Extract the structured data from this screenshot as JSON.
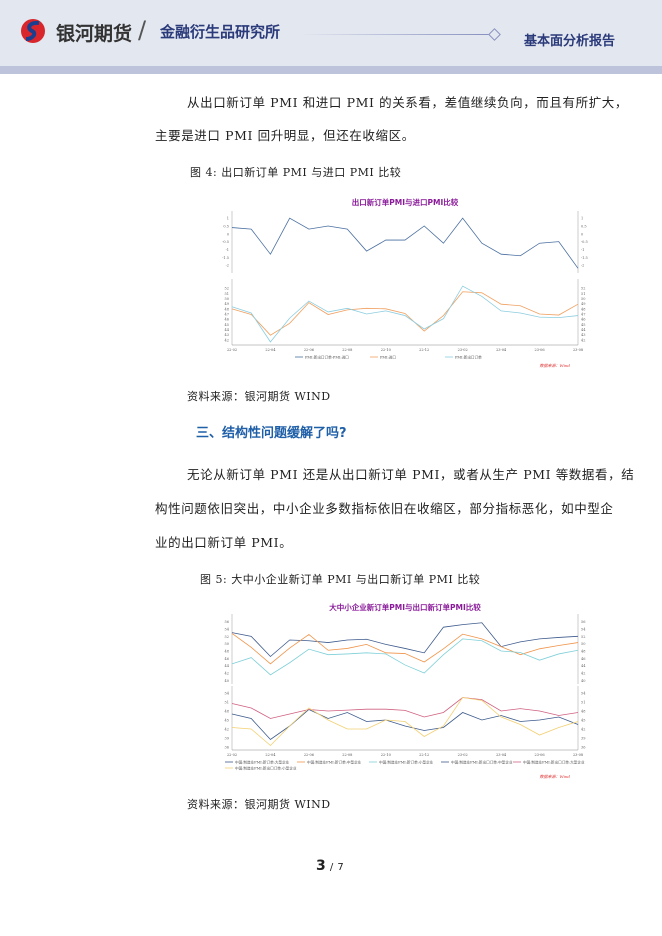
{
  "header": {
    "brand": "银河期货",
    "separator": "/",
    "institute": "金融衍生品研究所",
    "report_type": "基本面分析报告"
  },
  "section1": {
    "para_lines": [
      "从出口新订单 PMI 和进口 PMI 的关系看，差值继续负向，而且有所扩大，",
      "主要是进口 PMI 回升明显，但还在收缩区。"
    ],
    "figure_caption": "图 4:  出口新订单 PMI 与进口 PMI 比较",
    "source": "资料来源：银河期货  WIND"
  },
  "section2": {
    "heading": "三、结构性问题缓解了吗?",
    "para_lines": [
      "无论从新订单 PMI 还是从出口新订单 PMI，或者从生产 PMI 等数据看，结",
      "构性问题依旧突出，中小企业多数指标依旧在收缩区，部分指标恶化，如中型企",
      "业的出口新订单 PMI。"
    ],
    "figure_caption": "图 5:  大中小企业新订单 PMI 与出口新订单 PMI 比较",
    "source": "资料来源：银河期货  WIND"
  },
  "page": {
    "current": "3",
    "sep": "/",
    "total": "7"
  },
  "chart_data": [
    {
      "type": "line",
      "title": "出口新订单PMI与进口PMI比较",
      "source_note": "数据来源：Wind",
      "x": [
        "22-02",
        "22-03",
        "22-04",
        "22-05",
        "22-06",
        "22-07",
        "22-08",
        "22-09",
        "22-10",
        "22-11",
        "22-12",
        "23-01",
        "23-02",
        "23-03",
        "23-04",
        "23-05",
        "23-06",
        "23-07",
        "23-08"
      ],
      "x_ticks": [
        "22-02",
        "22-04",
        "22-06",
        "22-08",
        "22-10",
        "22-12",
        "23-02",
        "23-04",
        "23-06",
        "23-08"
      ],
      "panels": [
        {
          "ylim": [
            -2.5,
            1.2
          ],
          "y_ticks": [
            1.0,
            0.5,
            0.0,
            -0.5,
            -1.0,
            -1.5,
            -2.0
          ],
          "series": [
            {
              "name": "PMI:新出口订单-PMI:进口",
              "color": "#4a6fa0",
              "values": [
                0.4,
                0.3,
                -1.3,
                1.0,
                0.3,
                0.5,
                0.3,
                -1.1,
                -0.4,
                -0.4,
                0.5,
                -0.6,
                1.0,
                -0.6,
                -1.3,
                -1.4,
                -0.6,
                -0.5,
                -2.2
              ]
            }
          ]
        },
        {
          "ylim": [
            41,
            53
          ],
          "y_ticks": [
            52,
            51,
            50,
            49,
            48,
            47,
            46,
            45,
            44,
            43,
            42
          ],
          "series": [
            {
              "name": "PMI:进口",
              "color": "#f0a060",
              "values": [
                48.0,
                46.9,
                42.9,
                45.2,
                49.2,
                46.9,
                47.8,
                48.1,
                48.0,
                47.1,
                43.7,
                46.7,
                51.3,
                51.1,
                48.9,
                48.6,
                47.0,
                46.8,
                48.9
              ]
            },
            {
              "name": "PMI:新出口订单",
              "color": "#8ccde0",
              "values": [
                48.4,
                47.2,
                41.6,
                46.2,
                49.5,
                47.4,
                48.1,
                47.0,
                47.6,
                46.7,
                44.1,
                46.1,
                52.4,
                50.4,
                47.6,
                47.2,
                46.4,
                46.3,
                46.7
              ]
            }
          ]
        }
      ]
    },
    {
      "type": "line",
      "title": "大中小企业新订单PMI与出口新订单PMI比较",
      "source_note": "数据来源：Wind",
      "x": [
        "22-02",
        "22-03",
        "22-04",
        "22-05",
        "22-06",
        "22-07",
        "22-08",
        "22-09",
        "22-10",
        "22-11",
        "22-12",
        "23-01",
        "23-02",
        "23-03",
        "23-04",
        "23-05",
        "23-06",
        "23-07",
        "23-08"
      ],
      "x_ticks": [
        "22-02",
        "22-04",
        "22-06",
        "22-08",
        "22-10",
        "22-12",
        "23-02",
        "23-04",
        "23-06",
        "23-08"
      ],
      "panels": [
        {
          "ylim": [
            39,
            57
          ],
          "y_ticks": [
            56,
            54,
            52,
            50,
            48,
            46,
            44,
            42,
            40
          ],
          "series": [
            {
              "name": "中国:制造业PMI:新订单:大型企业",
              "color": "#3d5a8c",
              "values": [
                53.0,
                52.0,
                46.5,
                51.0,
                50.8,
                50.3,
                51.0,
                51.2,
                49.8,
                48.7,
                47.5,
                54.5,
                55.2,
                55.7,
                49.2,
                50.5,
                51.3,
                51.7,
                52.0
              ]
            },
            {
              "name": "中国:制造业PMI:新订单:中型企业",
              "color": "#f0944a",
              "values": [
                52.8,
                49.0,
                44.5,
                48.8,
                52.5,
                48.2,
                48.7,
                49.8,
                47.5,
                47.3,
                45.0,
                48.6,
                52.6,
                51.3,
                49.2,
                47.0,
                48.6,
                49.5,
                50.3
              ]
            },
            {
              "name": "中国:制造业PMI:新订单:小型企业",
              "color": "#7fd0d8",
              "values": [
                44.5,
                46.2,
                41.5,
                44.8,
                48.5,
                47.0,
                47.2,
                47.5,
                47.2,
                44.2,
                42.0,
                47.0,
                51.3,
                50.8,
                48.0,
                47.6,
                45.5,
                47.2,
                48.2
              ]
            }
          ]
        },
        {
          "ylim": [
            35,
            55
          ],
          "y_ticks": [
            54,
            51,
            48,
            45,
            42,
            39,
            36
          ],
          "series": [
            {
              "name": "中国:制造业PMI:新出口订单:中型企业",
              "color": "#3d5a8c",
              "values": [
                47.0,
                45.5,
                38.5,
                43.0,
                48.5,
                45.5,
                47.5,
                44.5,
                45.0,
                43.0,
                41.5,
                42.5,
                47.5,
                45.0,
                46.5,
                44.5,
                45.0,
                46.0,
                43.5
              ]
            },
            {
              "name": "中国:制造业PMI:新出口订单:大型企业",
              "color": "#d06080",
              "values": [
                50.5,
                49.0,
                45.5,
                47.0,
                48.5,
                48.0,
                48.3,
                48.6,
                48.6,
                48.2,
                46.0,
                47.5,
                52.5,
                51.8,
                48.0,
                48.8,
                48.0,
                46.5,
                47.5
              ]
            },
            {
              "name": "中国:制造业PMI:新出口订单:小型企业",
              "color": "#f2cf70",
              "values": [
                42.5,
                42.0,
                36.5,
                43.0,
                49.0,
                45.0,
                42.0,
                42.0,
                45.0,
                44.5,
                39.5,
                43.0,
                52.5,
                51.5,
                46.0,
                43.5,
                40.0,
                42.5,
                44.5
              ]
            }
          ]
        }
      ]
    }
  ]
}
